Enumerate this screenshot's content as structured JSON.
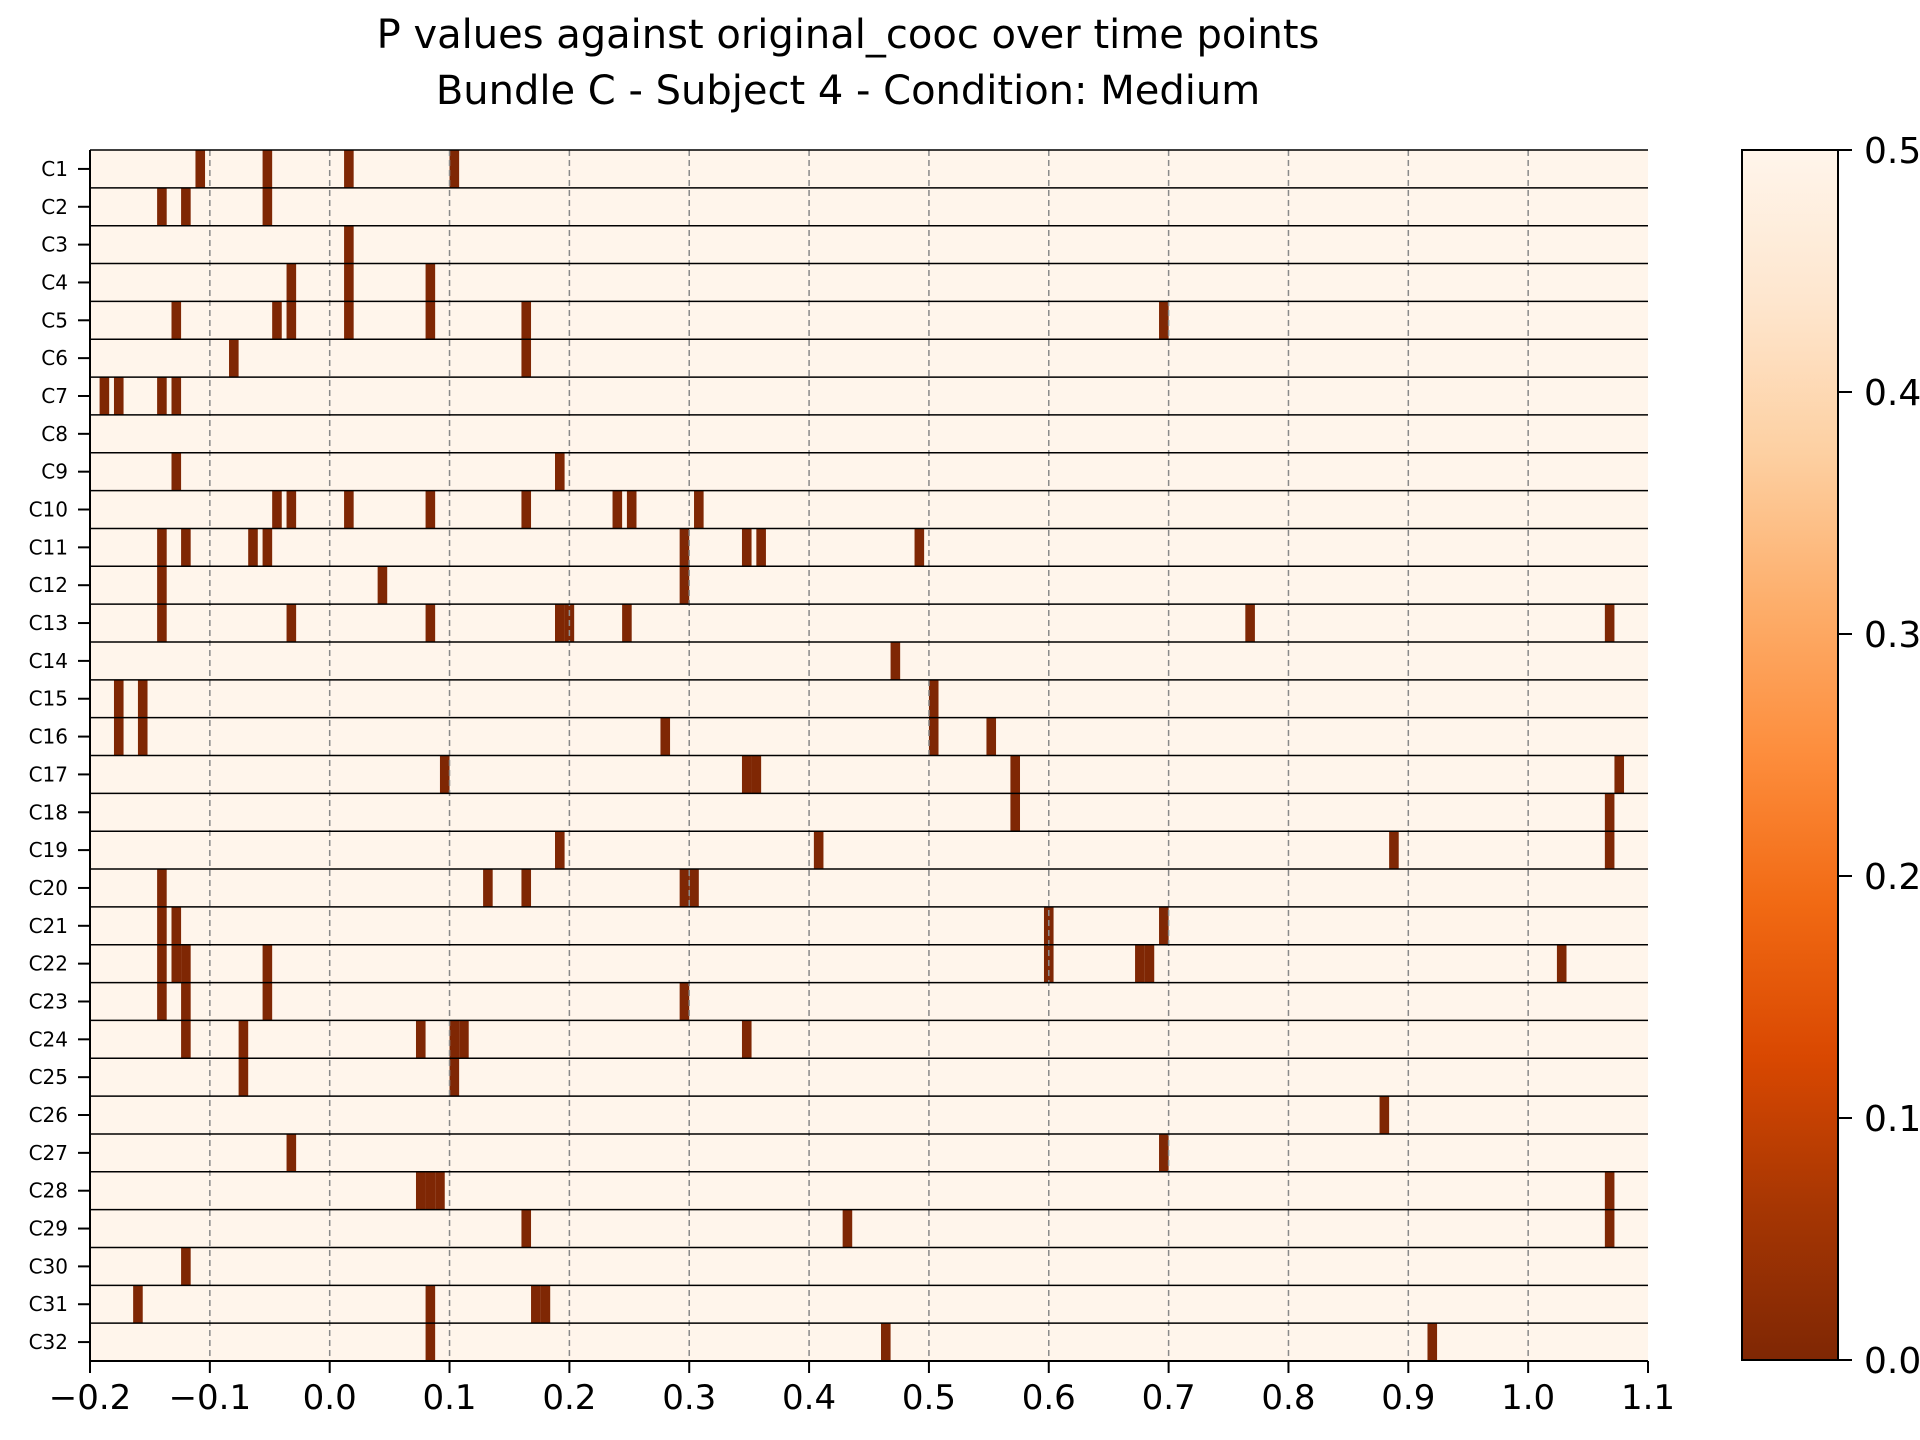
{
  "chart_data": {
    "type": "heatmap",
    "title": "P values against original_cooc over time points",
    "subtitle": "Bundle C - Subject 4 - Condition: Medium",
    "xlabel": "",
    "ylabel": "",
    "xlim": [
      -0.2,
      1.1
    ],
    "x_ticks": [
      "−0.2",
      "−0.1",
      "0.0",
      "0.1",
      "0.2",
      "0.3",
      "0.4",
      "0.5",
      "0.6",
      "0.7",
      "0.8",
      "0.9",
      "1.0",
      "1.1"
    ],
    "x_tick_values": [
      -0.2,
      -0.1,
      0.0,
      0.1,
      0.2,
      0.3,
      0.4,
      0.5,
      0.6,
      0.7,
      0.8,
      0.9,
      1.0,
      1.1
    ],
    "grid": "vertical dashed at x ticks",
    "time_step": 0.008,
    "background_value": 0.5,
    "significant_value": 0.0,
    "rows": [
      "C1",
      "C2",
      "C3",
      "C4",
      "C5",
      "C6",
      "C7",
      "C8",
      "C9",
      "C10",
      "C11",
      "C12",
      "C13",
      "C14",
      "C15",
      "C16",
      "C17",
      "C18",
      "C19",
      "C20",
      "C21",
      "C22",
      "C23",
      "C24",
      "C25",
      "C26",
      "C27",
      "C28",
      "C29",
      "C30",
      "C31",
      "C32"
    ],
    "significant_times": [
      [
        -0.108,
        -0.052,
        0.016,
        0.104
      ],
      [
        -0.14,
        -0.12,
        -0.052
      ],
      [
        0.016
      ],
      [
        -0.032,
        0.016,
        0.084
      ],
      [
        -0.128,
        -0.044,
        -0.032,
        0.016,
        0.084,
        0.164,
        0.696
      ],
      [
        -0.08,
        0.164
      ],
      [
        -0.188,
        -0.176,
        -0.14,
        -0.128
      ],
      [],
      [
        -0.128,
        0.192
      ],
      [
        -0.044,
        -0.032,
        0.016,
        0.084,
        0.164,
        0.24,
        0.252,
        0.308
      ],
      [
        -0.14,
        -0.12,
        -0.064,
        -0.052,
        0.296,
        0.348,
        0.36,
        0.492
      ],
      [
        -0.14,
        0.044,
        0.296
      ],
      [
        -0.14,
        -0.032,
        0.084,
        0.192,
        0.2,
        0.248,
        0.768,
        1.068
      ],
      [
        0.472
      ],
      [
        -0.176,
        -0.156,
        0.504
      ],
      [
        -0.176,
        -0.156,
        0.28,
        0.504,
        0.552
      ],
      [
        0.096,
        0.348,
        0.356,
        0.572,
        1.076
      ],
      [
        0.572,
        1.068
      ],
      [
        0.192,
        0.408,
        0.888,
        1.068
      ],
      [
        -0.14,
        0.132,
        0.164,
        0.296,
        0.304
      ],
      [
        -0.14,
        -0.128,
        0.6,
        0.696
      ],
      [
        -0.14,
        -0.128,
        -0.12,
        -0.052,
        0.6,
        0.676,
        0.684,
        1.028
      ],
      [
        -0.14,
        -0.12,
        -0.052,
        0.296
      ],
      [
        -0.12,
        -0.072,
        0.076,
        0.104,
        0.112,
        0.348
      ],
      [
        -0.072,
        0.104
      ],
      [
        0.88
      ],
      [
        -0.032,
        0.696
      ],
      [
        0.076,
        0.084,
        0.092,
        1.068
      ],
      [
        0.164,
        0.432,
        1.068
      ],
      [
        -0.12
      ],
      [
        -0.16,
        0.084,
        0.172,
        0.18
      ],
      [
        0.084,
        0.464,
        0.92
      ]
    ],
    "colorbar": {
      "colormap": "Oranges_r",
      "range": [
        0.0,
        0.5
      ],
      "ticks": [
        "0.0",
        "0.1",
        "0.2",
        "0.3",
        "0.4",
        "0.5"
      ],
      "tick_values": [
        0.0,
        0.1,
        0.2,
        0.3,
        0.4,
        0.5
      ],
      "position": "right"
    }
  }
}
